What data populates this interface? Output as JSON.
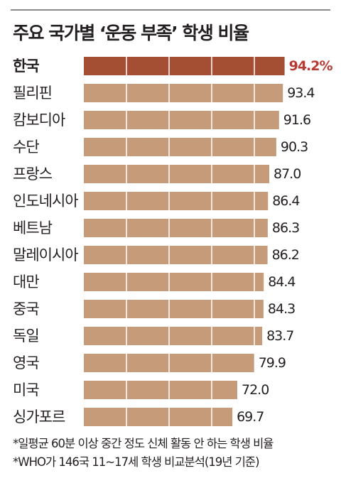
{
  "title": "주요 국가별 ‘운동 부족’ 학생 비율",
  "chart_data": {
    "type": "bar",
    "orientation": "horizontal",
    "title": "주요 국가별 ‘운동 부족’ 학생 비율",
    "categories": [
      "한국",
      "필리핀",
      "캄보디아",
      "수단",
      "프랑스",
      "인도네시아",
      "베트남",
      "말레이시아",
      "대만",
      "중국",
      "독일",
      "영국",
      "미국",
      "싱가포르"
    ],
    "values": [
      94.2,
      93.4,
      91.6,
      90.3,
      87.0,
      86.4,
      86.3,
      86.2,
      84.4,
      84.3,
      83.7,
      79.9,
      72.0,
      69.7
    ],
    "value_labels": [
      "94.2%",
      "93.4",
      "91.6",
      "90.3",
      "87.0",
      "86.4",
      "86.3",
      "86.2",
      "84.4",
      "84.3",
      "83.7",
      "79.9",
      "72.0",
      "69.7"
    ],
    "unit": "%",
    "highlight_index": 0,
    "grid": false,
    "colors": {
      "bar": "#c59b79",
      "highlight_bar": "#a44f34",
      "highlight_text": "#b83a35",
      "text": "#231f20"
    }
  },
  "footnotes": [
    "*일평균 60분 이상 중간 정도 신체 활동 안 하는 학생 비율",
    "*WHO가 146국 11~17세 학생 비교분석(19년 기준)"
  ]
}
